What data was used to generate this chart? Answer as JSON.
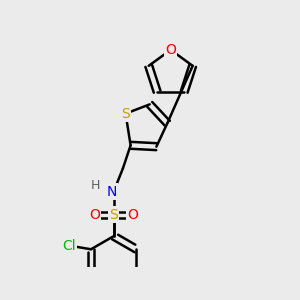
{
  "background_color": "#ebebeb",
  "atom_colors": {
    "S_thio": "#c8a000",
    "S_sulf": "#c8a000",
    "O": "#ff0000",
    "N": "#0000ff",
    "Cl": "#00bb00",
    "C": "#000000",
    "H": "#606060"
  },
  "bond_color": "#000000",
  "bond_width": 1.8,
  "font_size": 10,
  "dbo": 0.045
}
